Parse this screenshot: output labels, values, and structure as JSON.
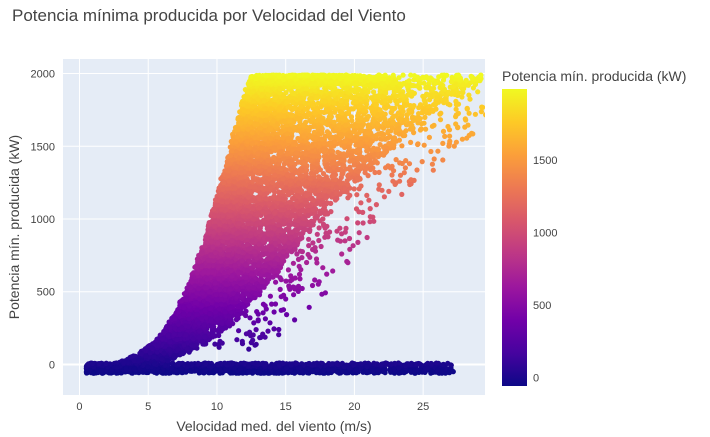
{
  "chart_data": {
    "type": "scatter",
    "title": "Potencia mínima producida por Velocidad del Viento",
    "xlabel": "Velocidad med. del viento (m/s)",
    "ylabel": "Potencia mín. producida (kW)",
    "xlim": [
      -1.2,
      29.5
    ],
    "ylim": [
      -210,
      2100
    ],
    "x_ticks": [
      0,
      5,
      10,
      15,
      20,
      25
    ],
    "y_ticks": [
      0,
      500,
      1000,
      1500,
      2000
    ],
    "grid": true,
    "background_color": "#e5ecf6",
    "colorbar": {
      "title": "Potencia mín. producida (kW)",
      "range": [
        -60,
        1990
      ],
      "ticks": [
        0,
        500,
        1000,
        1500
      ],
      "colorscale": "plasma"
    },
    "series": [
      {
        "points_description": "dense power curve",
        "points": [
          [
            3.0,
            0
          ],
          [
            3.5,
            20
          ],
          [
            4.0,
            40
          ],
          [
            4.5,
            60
          ],
          [
            5.0,
            90
          ],
          [
            5.5,
            120
          ],
          [
            6.0,
            160
          ],
          [
            6.5,
            210
          ],
          [
            7.0,
            280
          ],
          [
            7.5,
            360
          ],
          [
            8.0,
            450
          ],
          [
            8.5,
            550
          ],
          [
            9.0,
            680
          ],
          [
            9.5,
            820
          ],
          [
            10.0,
            980
          ],
          [
            10.5,
            1150
          ],
          [
            11.0,
            1330
          ],
          [
            11.5,
            1500
          ],
          [
            12.0,
            1680
          ],
          [
            12.5,
            1850
          ],
          [
            13.0,
            1980
          ],
          [
            15.0,
            1990
          ],
          [
            18.0,
            1990
          ],
          [
            21.0,
            1980
          ],
          [
            23.0,
            1960
          ]
        ],
        "scatter_outliers": [
          [
            14.0,
            900
          ],
          [
            15.0,
            450
          ],
          [
            16.0,
            1150
          ],
          [
            17.0,
            960
          ],
          [
            18.0,
            950
          ],
          [
            19.0,
            1580
          ],
          [
            20.0,
            1550
          ],
          [
            21.5,
            1320
          ],
          [
            22.5,
            1190
          ],
          [
            22.8,
            1260
          ],
          [
            13.0,
            300
          ],
          [
            14.5,
            240
          ],
          [
            12.5,
            150
          ]
        ],
        "zero_band": {
          "x_range": [
            0.5,
            27.2
          ],
          "y_range": [
            -60,
            10
          ]
        }
      }
    ]
  }
}
